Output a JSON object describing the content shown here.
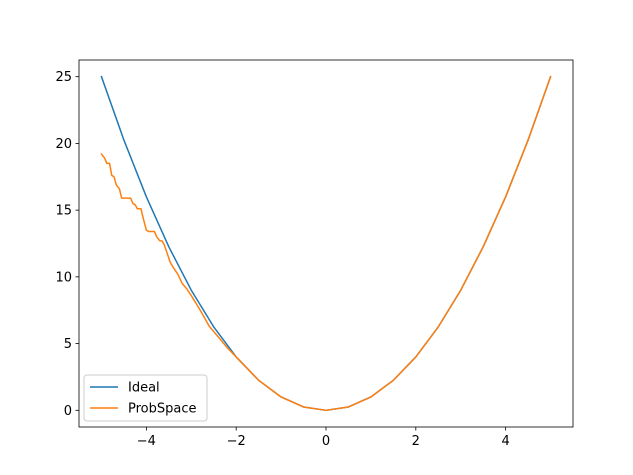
{
  "chart_data": {
    "type": "line",
    "title": "",
    "xlabel": "",
    "ylabel": "",
    "xlim": [
      -5.5,
      5.5
    ],
    "ylim": [
      -1.25,
      26.25
    ],
    "xticks": [
      -4,
      -2,
      0,
      2,
      4
    ],
    "yticks": [
      0,
      5,
      10,
      15,
      20,
      25
    ],
    "xtick_labels": [
      "−4",
      "−2",
      "0",
      "2",
      "4"
    ],
    "ytick_labels": [
      "0",
      "5",
      "10",
      "15",
      "20",
      "25"
    ],
    "grid": false,
    "legend_position": "lower-left",
    "series": [
      {
        "name": "Ideal",
        "color": "#1f77b4",
        "x": [
          -5.0,
          -4.5,
          -4.0,
          -3.5,
          -3.0,
          -2.5,
          -2.0,
          -1.5,
          -1.0,
          -0.5,
          0.0,
          0.5,
          1.0,
          1.5,
          2.0,
          2.5,
          3.0,
          3.5,
          4.0,
          4.5,
          5.0
        ],
        "y": [
          25.0,
          20.25,
          16.0,
          12.25,
          9.0,
          6.25,
          4.0,
          2.25,
          1.0,
          0.25,
          0.0,
          0.25,
          1.0,
          2.25,
          4.0,
          6.25,
          9.0,
          12.25,
          16.0,
          20.25,
          25.0
        ]
      },
      {
        "name": "ProbSpace",
        "color": "#ff7f0e",
        "x": [
          -5.0,
          -4.93,
          -4.88,
          -4.82,
          -4.77,
          -4.72,
          -4.67,
          -4.6,
          -4.55,
          -4.48,
          -4.43,
          -4.35,
          -4.3,
          -4.25,
          -4.2,
          -4.12,
          -4.07,
          -4.0,
          -3.95,
          -3.9,
          -3.82,
          -3.77,
          -3.7,
          -3.65,
          -3.6,
          -3.55,
          -3.47,
          -3.4,
          -3.3,
          -3.2,
          -3.1,
          -3.0,
          -2.8,
          -2.6,
          -2.4,
          -2.2,
          -2.0,
          -1.5,
          -1.0,
          -0.5,
          0.0,
          0.5,
          1.0,
          1.5,
          2.0,
          2.5,
          3.0,
          3.5,
          4.0,
          4.5,
          5.0
        ],
        "y": [
          19.2,
          18.9,
          18.5,
          18.5,
          17.6,
          17.5,
          16.9,
          16.6,
          15.9,
          15.9,
          15.9,
          15.9,
          15.5,
          15.4,
          15.1,
          15.1,
          14.4,
          13.5,
          13.4,
          13.4,
          13.4,
          13.0,
          12.7,
          12.7,
          12.4,
          11.9,
          11.1,
          10.7,
          10.2,
          9.5,
          9.1,
          8.6,
          7.5,
          6.3,
          5.5,
          4.7,
          4.0,
          2.25,
          1.0,
          0.25,
          0.0,
          0.25,
          1.0,
          2.25,
          4.0,
          6.25,
          9.0,
          12.25,
          16.0,
          20.25,
          25.0
        ]
      }
    ]
  }
}
